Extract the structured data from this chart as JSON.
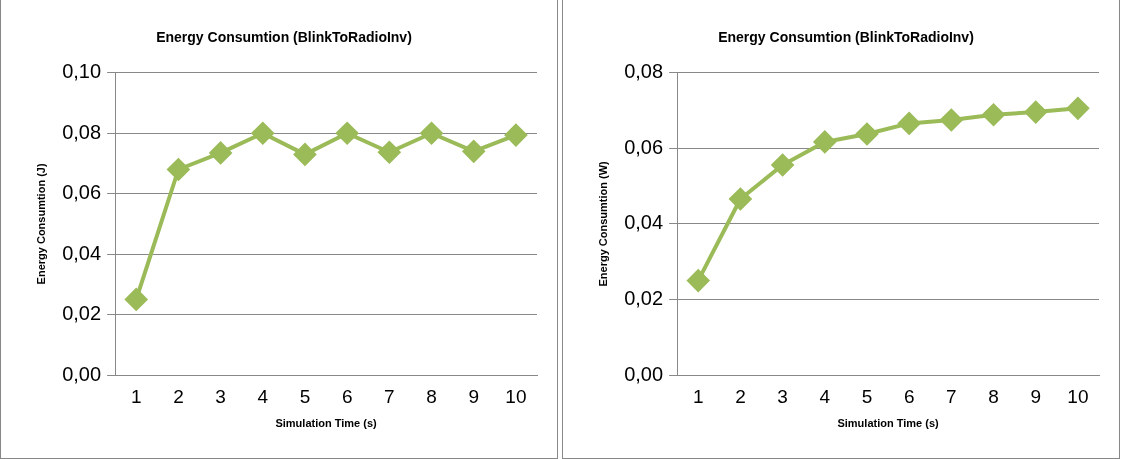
{
  "chart_data": [
    {
      "type": "line",
      "title": "Energy Consumtion (BlinkToRadioInv)",
      "xlabel": "Simulation Time (s)",
      "ylabel": "Energy Consumtion (J)",
      "categories": [
        "1",
        "2",
        "3",
        "4",
        "5",
        "6",
        "7",
        "8",
        "9",
        "10"
      ],
      "series": [
        {
          "color": "#9bbb59",
          "values": [
            0.025,
            0.068,
            0.0735,
            0.08,
            0.073,
            0.08,
            0.0737,
            0.08,
            0.074,
            0.0794
          ]
        }
      ],
      "ylim": [
        0,
        0.1
      ],
      "yticks": [
        {
          "value": 0,
          "label": "0,00"
        },
        {
          "value": 0.02,
          "label": "0,02"
        },
        {
          "value": 0.04,
          "label": "0,04"
        },
        {
          "value": 0.06,
          "label": "0,06"
        },
        {
          "value": 0.08,
          "label": "0,08"
        },
        {
          "value": 0.1,
          "label": "0,10"
        }
      ],
      "grid": "y",
      "legend": false,
      "marker": "diamond",
      "line_style": "solid"
    },
    {
      "type": "line",
      "title": "Energy Consumtion (BlinkToRadioInv)",
      "xlabel": "Simulation Time (s)",
      "ylabel": "Energy Consumtion (W)",
      "categories": [
        "1",
        "2",
        "3",
        "4",
        "5",
        "6",
        "7",
        "8",
        "9",
        "10"
      ],
      "series": [
        {
          "color": "#9bbb59",
          "values": [
            0.025,
            0.0466,
            0.0556,
            0.0617,
            0.0638,
            0.0666,
            0.0675,
            0.0689,
            0.0696,
            0.0706
          ]
        }
      ],
      "ylim": [
        0,
        0.08
      ],
      "yticks": [
        {
          "value": 0,
          "label": "0,00"
        },
        {
          "value": 0.02,
          "label": "0,02"
        },
        {
          "value": 0.04,
          "label": "0,04"
        },
        {
          "value": 0.06,
          "label": "0,06"
        },
        {
          "value": 0.08,
          "label": "0,08"
        }
      ],
      "grid": "y",
      "legend": false,
      "marker": "diamond",
      "line_style": "solid"
    }
  ]
}
